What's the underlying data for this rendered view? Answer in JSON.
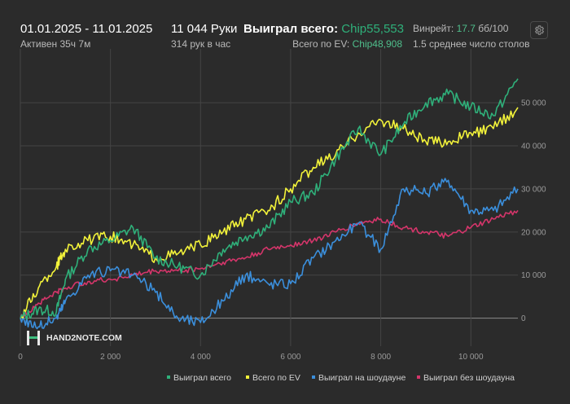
{
  "header": {
    "date_range": "01.01.2025 - 11.01.2025",
    "active": "Активен 35ч 7м",
    "hands": "11 044 Руки",
    "hands_per_hour": "314 рук в час",
    "won_total_label": "Выиграл всего:",
    "won_total_value": "Chip55,553",
    "ev_label": "Всего по EV:",
    "ev_value": "Chip48,908",
    "winrate_label": "Винрейт:",
    "winrate_value": "17.7",
    "winrate_unit": "бб/100",
    "tables": "1.5 среднее число столов"
  },
  "logo_text": "HAND2NOTE.COM",
  "colors": {
    "won": "#2fb07a",
    "ev": "#f2f23a",
    "showdown": "#3b8fdc",
    "nonshowdown": "#d4356a",
    "grid": "#454545",
    "zero": "#8a8a8a"
  },
  "icons": {
    "settings": "gear-icon",
    "logo": "hand2note-logo-icon"
  },
  "chart_data": {
    "type": "line",
    "x_ticks": [
      "0",
      "2 000",
      "4 000",
      "6 000",
      "8 000",
      "10 000"
    ],
    "y_ticks": [
      "0",
      "10 000",
      "20 000",
      "30 000",
      "40 000",
      "50 000"
    ],
    "xlim": [
      0,
      11044
    ],
    "ylim": [
      -6500,
      62500
    ],
    "grid": true,
    "legend_position": "bottom-right",
    "x": [
      0,
      400,
      800,
      1000,
      1500,
      2000,
      2500,
      3000,
      3500,
      4000,
      4500,
      5000,
      5500,
      6000,
      6500,
      7000,
      7500,
      8000,
      8500,
      9000,
      9500,
      10000,
      10500,
      11044
    ],
    "series": [
      {
        "name": "Выиграл всего",
        "color_key": "won",
        "values": [
          0,
          2000,
          1500,
          9000,
          16000,
          18000,
          21000,
          14000,
          12000,
          10000,
          16000,
          19000,
          21000,
          27000,
          29000,
          37000,
          44000,
          38000,
          45000,
          50000,
          52000,
          49000,
          47000,
          55553
        ]
      },
      {
        "name": "Всего по EV",
        "color_key": "ev",
        "values": [
          0,
          7000,
          12000,
          16000,
          18000,
          19000,
          17000,
          14000,
          15000,
          17000,
          20000,
          23000,
          25000,
          30000,
          35000,
          38000,
          43000,
          46000,
          44000,
          41000,
          41000,
          43000,
          44000,
          48908
        ]
      },
      {
        "name": "Выиграл на шоудауне",
        "color_key": "showdown",
        "values": [
          0,
          -2000,
          0,
          4000,
          10000,
          11000,
          10000,
          6000,
          0,
          -1000,
          4000,
          10000,
          8000,
          8000,
          14000,
          18000,
          22000,
          16000,
          30000,
          29000,
          32000,
          25000,
          25000,
          30000
        ]
      },
      {
        "name": "Выиграл без шоудауна",
        "color_key": "nonshowdown",
        "values": [
          0,
          3500,
          6000,
          7000,
          8500,
          9000,
          10000,
          11000,
          11000,
          11500,
          13000,
          14000,
          16000,
          17000,
          18000,
          20000,
          22000,
          23000,
          21000,
          20000,
          19000,
          21000,
          23000,
          25000
        ]
      }
    ]
  }
}
